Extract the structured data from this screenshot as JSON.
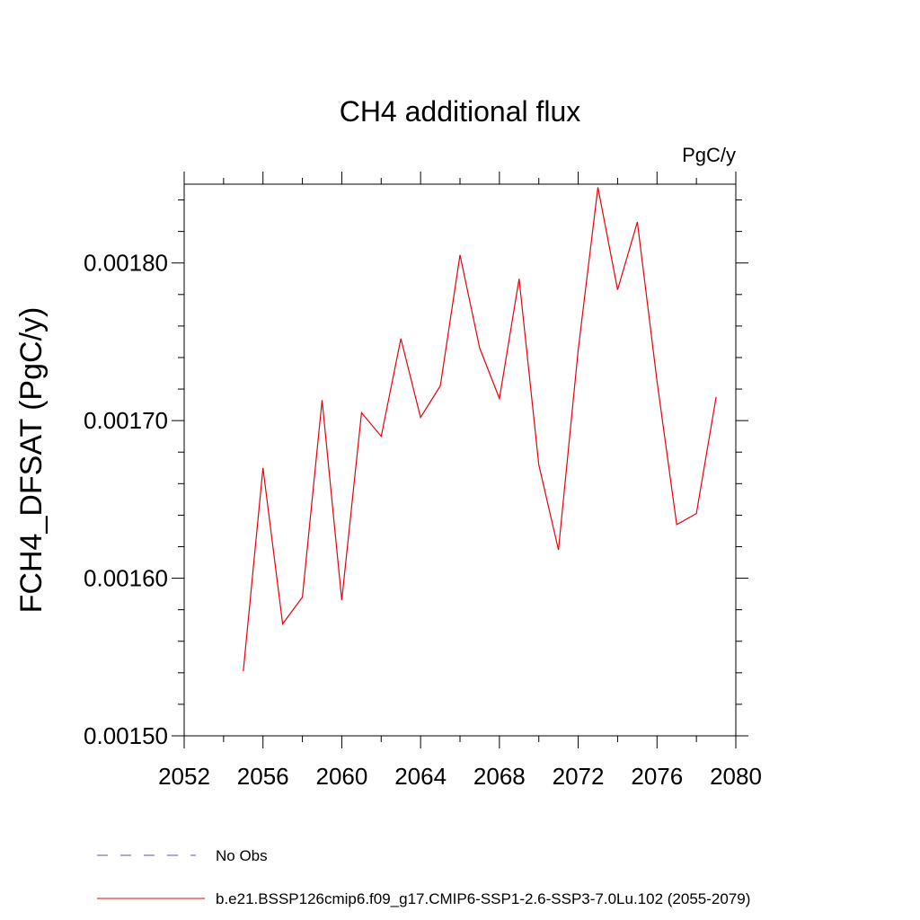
{
  "chart_data": {
    "type": "line",
    "title": "CH4 additional flux",
    "units_label": "PgC/y",
    "ylabel": "FCH4_DFSAT  (PgC/y)",
    "xlabel": "",
    "xlim": [
      2052,
      2080
    ],
    "ylim": [
      0.0015,
      0.00185
    ],
    "x_ticks": [
      2052,
      2056,
      2060,
      2064,
      2068,
      2072,
      2076,
      2080
    ],
    "x_tick_labels": [
      "2052",
      "2056",
      "2060",
      "2064",
      "2068",
      "2072",
      "2076",
      "2080"
    ],
    "y_ticks": [
      0.0015,
      0.0016,
      0.0017,
      0.0018
    ],
    "y_tick_labels": [
      "0.00150",
      "0.00160",
      "0.00170",
      "0.00180"
    ],
    "grid": false,
    "legend_position": "bottom",
    "series": [
      {
        "name": "No Obs",
        "color": "#6655aa",
        "dash": "dashed",
        "x": [],
        "values": []
      },
      {
        "name": "b.e21.BSSP126cmip6.f09_g17.CMIP6-SSP1-2.6-SSP3-7.0Lu.102 (2055-2079)",
        "color": "#e8000b",
        "dash": "solid",
        "x": [
          2055,
          2056,
          2057,
          2058,
          2059,
          2060,
          2061,
          2062,
          2063,
          2064,
          2065,
          2066,
          2067,
          2068,
          2069,
          2070,
          2071,
          2072,
          2073,
          2074,
          2075,
          2076,
          2077,
          2078,
          2079
        ],
        "values": [
          0.001541,
          0.00167,
          0.001571,
          0.001588,
          0.001713,
          0.001586,
          0.001705,
          0.00169,
          0.001752,
          0.001702,
          0.001722,
          0.001805,
          0.001746,
          0.001714,
          0.00179,
          0.001672,
          0.001618,
          0.001745,
          0.001848,
          0.001783,
          0.001826,
          0.001725,
          0.001634,
          0.001641,
          0.001715
        ]
      }
    ]
  }
}
